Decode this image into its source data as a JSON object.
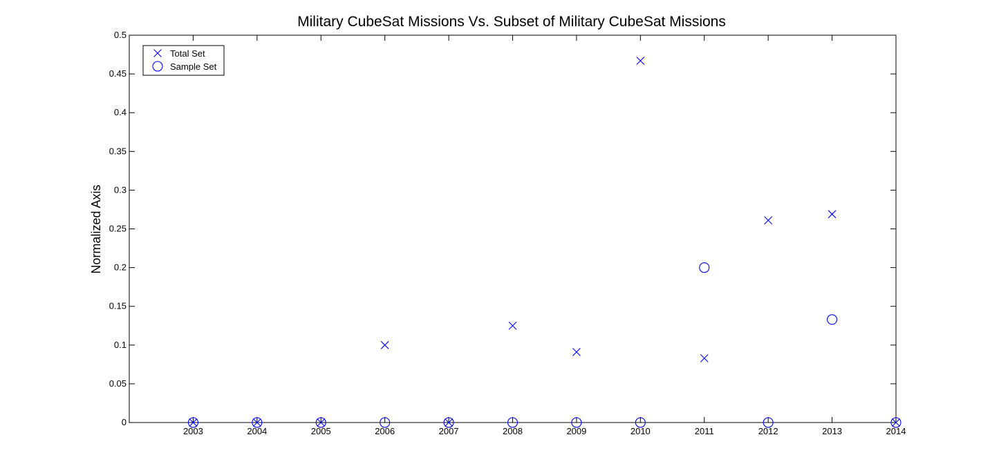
{
  "chart_data": {
    "type": "scatter",
    "title": "Military CubeSat Missions Vs. Subset of Military CubeSat Missions",
    "xlabel": "",
    "ylabel": "Normalized Axis",
    "x_ticks": [
      "2003",
      "2004",
      "2005",
      "2006",
      "2007",
      "2008",
      "2009",
      "2010",
      "2011",
      "2012",
      "2013",
      "2014"
    ],
    "y_ticks": [
      "0",
      "0.05",
      "0.1",
      "0.15",
      "0.2",
      "0.25",
      "0.3",
      "0.35",
      "0.4",
      "0.45",
      "0.5"
    ],
    "xlim": [
      2002,
      2014
    ],
    "ylim": [
      0,
      0.5
    ],
    "grid": false,
    "legend_position": "top-left",
    "color": "#0000ff",
    "series": [
      {
        "name": "Total Set",
        "marker": "x",
        "points": [
          {
            "x": 2003,
            "y": 0
          },
          {
            "x": 2004,
            "y": 0
          },
          {
            "x": 2005,
            "y": 0
          },
          {
            "x": 2006,
            "y": 0.1
          },
          {
            "x": 2007,
            "y": 0
          },
          {
            "x": 2008,
            "y": 0.125
          },
          {
            "x": 2009,
            "y": 0.091
          },
          {
            "x": 2010,
            "y": 0.467
          },
          {
            "x": 2011,
            "y": 0.083
          },
          {
            "x": 2012,
            "y": 0.261
          },
          {
            "x": 2013,
            "y": 0.269
          },
          {
            "x": 2014,
            "y": 0
          }
        ]
      },
      {
        "name": "Sample Set",
        "marker": "o",
        "points": [
          {
            "x": 2003,
            "y": 0
          },
          {
            "x": 2004,
            "y": 0
          },
          {
            "x": 2005,
            "y": 0
          },
          {
            "x": 2006,
            "y": 0
          },
          {
            "x": 2007,
            "y": 0
          },
          {
            "x": 2008,
            "y": 0
          },
          {
            "x": 2009,
            "y": 0
          },
          {
            "x": 2010,
            "y": 0
          },
          {
            "x": 2011,
            "y": 0.2
          },
          {
            "x": 2012,
            "y": 0
          },
          {
            "x": 2013,
            "y": 0.133
          },
          {
            "x": 2014,
            "y": 0
          }
        ]
      }
    ]
  }
}
